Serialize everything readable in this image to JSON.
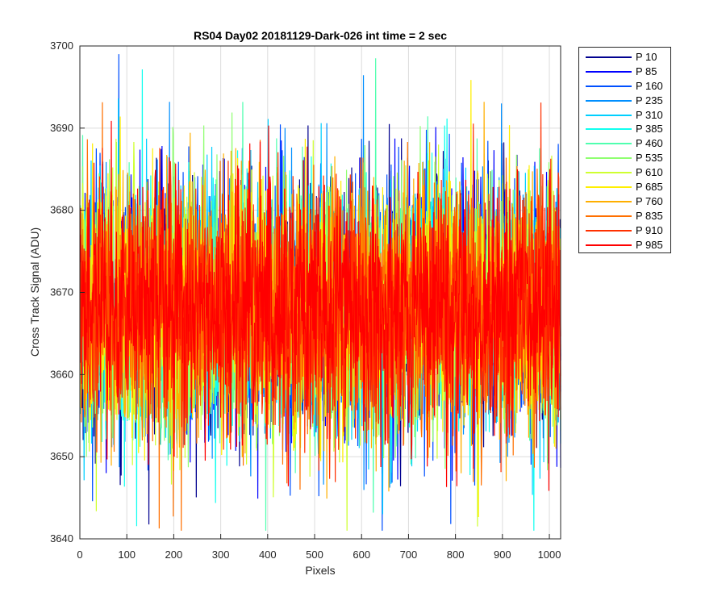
{
  "chart_data": {
    "type": "line",
    "title": "RS04 Day02 20181129-Dark-026 int time = 2 sec",
    "xlabel": "Pixels",
    "ylabel": "Cross Track Signal (ADU)",
    "xlim": [
      0,
      1024
    ],
    "ylim": [
      3640,
      3700
    ],
    "xticks": [
      0,
      100,
      200,
      300,
      400,
      500,
      600,
      700,
      800,
      900,
      1000
    ],
    "yticks": [
      3640,
      3650,
      3660,
      3670,
      3680,
      3690,
      3700
    ],
    "grid": true,
    "legend_position": "outside-right",
    "noise_center": 3668,
    "series": [
      {
        "name": "P 10",
        "color": "#00008f"
      },
      {
        "name": "P 85",
        "color": "#0000ff"
      },
      {
        "name": "P 160",
        "color": "#0050ff"
      },
      {
        "name": "P 235",
        "color": "#008fff"
      },
      {
        "name": "P 310",
        "color": "#00cfff"
      },
      {
        "name": "P 385",
        "color": "#10ffef"
      },
      {
        "name": "P 460",
        "color": "#50ffaf"
      },
      {
        "name": "P 535",
        "color": "#8fff70"
      },
      {
        "name": "P 610",
        "color": "#cfff30"
      },
      {
        "name": "P 685",
        "color": "#ffef00"
      },
      {
        "name": "P 760",
        "color": "#ffaf00"
      },
      {
        "name": "P 835",
        "color": "#ff7000"
      },
      {
        "name": "P 910",
        "color": "#ff3000"
      },
      {
        "name": "P 985",
        "color": "#ff0000"
      }
    ]
  }
}
